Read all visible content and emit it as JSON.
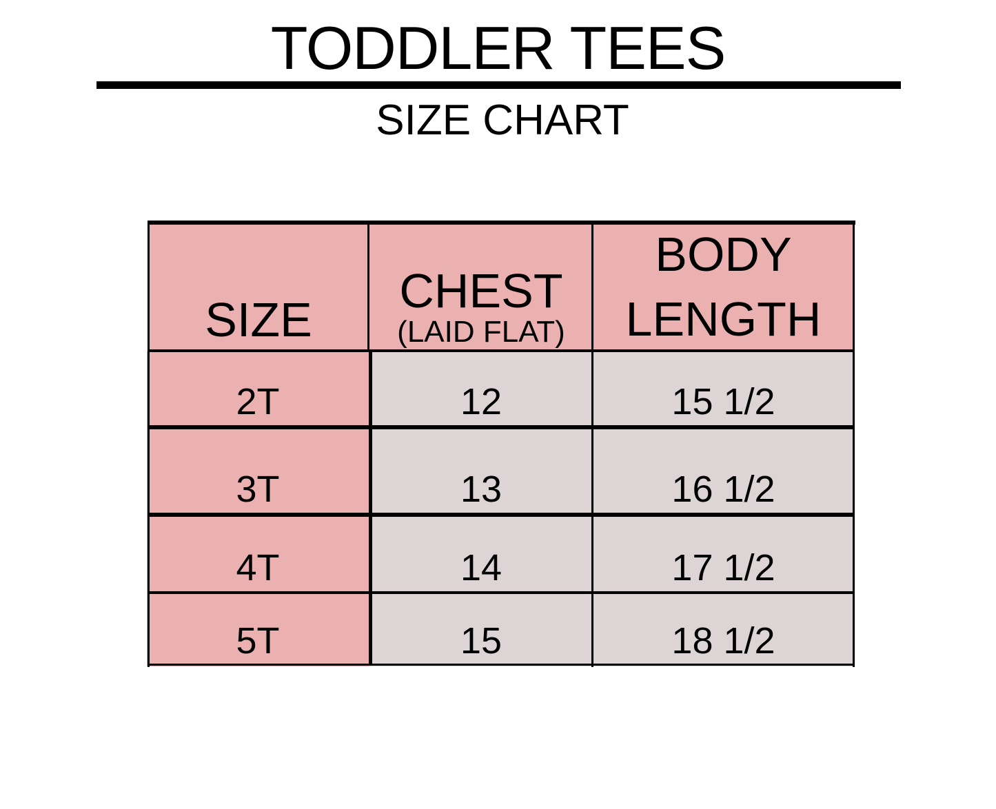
{
  "title": "TODDLER TEES",
  "subtitle": "SIZE CHART",
  "colors": {
    "header_fill": "#ebb1b1",
    "size_fill": "#ebb1b1",
    "value_fill": "#dcd4d5",
    "border": "#000000"
  },
  "table": {
    "headers": {
      "size": "SIZE",
      "chest": "CHEST",
      "chest_note": "(LAID FLAT)",
      "body_length_1": "BODY",
      "body_length_2": "LENGTH"
    },
    "rows": [
      {
        "size": "2T",
        "chest": "12",
        "body_length": "15 1/2"
      },
      {
        "size": "3T",
        "chest": "13",
        "body_length": "16 1/2"
      },
      {
        "size": "4T",
        "chest": "14",
        "body_length": "17 1/2"
      },
      {
        "size": "5T",
        "chest": "15",
        "body_length": "18 1/2"
      }
    ]
  }
}
